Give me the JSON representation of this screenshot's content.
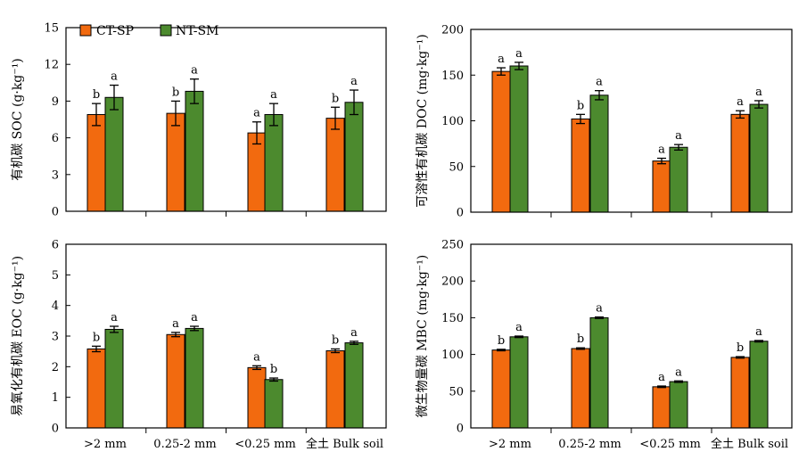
{
  "colors": {
    "CT-SP": "#f26a0f",
    "NT-SM": "#4c8a2e"
  },
  "legend": [
    "CT-SP",
    "NT-SM"
  ],
  "chart_data": [
    {
      "type": "bar",
      "categories": [
        ">2 mm",
        "0.25-2 mm",
        "<0.25 mm",
        "全土 Bulk soil"
      ],
      "ylabel": "有机碳 SOC (g·kg⁻¹)",
      "ylim": [
        0,
        15
      ],
      "yticks": [
        0,
        3,
        6,
        9,
        12,
        15
      ],
      "series": [
        {
          "name": "CT-SP",
          "values": [
            7.9,
            8.0,
            6.4,
            7.6
          ],
          "err": [
            0.9,
            1.0,
            0.9,
            0.9
          ],
          "sig": [
            "b",
            "b",
            "a",
            "b"
          ]
        },
        {
          "name": "NT-SM",
          "values": [
            9.3,
            9.8,
            7.9,
            8.9
          ],
          "err": [
            1.0,
            1.0,
            0.9,
            1.0
          ],
          "sig": [
            "a",
            "a",
            "a",
            "a"
          ]
        }
      ]
    },
    {
      "type": "bar",
      "categories": [
        ">2 mm",
        "0.25-2 mm",
        "<0.25 mm",
        "全土 Bulk soil"
      ],
      "ylabel": "可溶性有机碳 DOC (mg·kg⁻¹)",
      "ylim": [
        0,
        200
      ],
      "yticks": [
        0,
        50,
        100,
        150,
        200
      ],
      "series": [
        {
          "name": "CT-SP",
          "values": [
            154,
            102,
            56,
            107
          ],
          "err": [
            4,
            5,
            3,
            4
          ],
          "sig": [
            "a",
            "b",
            "a",
            "a"
          ]
        },
        {
          "name": "NT-SM",
          "values": [
            160,
            128,
            71,
            118
          ],
          "err": [
            4,
            5,
            3,
            4
          ],
          "sig": [
            "a",
            "a",
            "a",
            "a"
          ]
        }
      ]
    },
    {
      "type": "bar",
      "categories": [
        ">2 mm",
        "0.25-2 mm",
        "<0.25 mm",
        "全土 Bulk soil"
      ],
      "ylabel": "易氧化有机碳 EOC (g·kg⁻¹)",
      "ylim": [
        0,
        6
      ],
      "yticks": [
        0,
        1,
        2,
        3,
        4,
        5,
        6
      ],
      "series": [
        {
          "name": "CT-SP",
          "values": [
            2.58,
            3.05,
            1.97,
            2.52
          ],
          "err": [
            0.09,
            0.07,
            0.06,
            0.06
          ],
          "sig": [
            "b",
            "a",
            "a",
            "b"
          ]
        },
        {
          "name": "NT-SM",
          "values": [
            3.22,
            3.25,
            1.58,
            2.78
          ],
          "err": [
            0.1,
            0.07,
            0.05,
            0.05
          ],
          "sig": [
            "a",
            "a",
            "b",
            "a"
          ]
        }
      ]
    },
    {
      "type": "bar",
      "categories": [
        ">2 mm",
        "0.25-2 mm",
        "<0.25 mm",
        "全土 Bulk soil"
      ],
      "ylabel": "微生物量碳 MBC (mg·kg⁻¹)",
      "ylim": [
        0,
        250
      ],
      "yticks": [
        0,
        50,
        100,
        150,
        200,
        250
      ],
      "series": [
        {
          "name": "CT-SP",
          "values": [
            106,
            108,
            56,
            96
          ],
          "err": [
            1,
            1,
            1,
            1
          ],
          "sig": [
            "b",
            "b",
            "a",
            "b"
          ]
        },
        {
          "name": "NT-SM",
          "values": [
            124,
            150,
            63,
            118
          ],
          "err": [
            1,
            1,
            1,
            1
          ],
          "sig": [
            "a",
            "a",
            "a",
            "a"
          ]
        }
      ]
    }
  ]
}
